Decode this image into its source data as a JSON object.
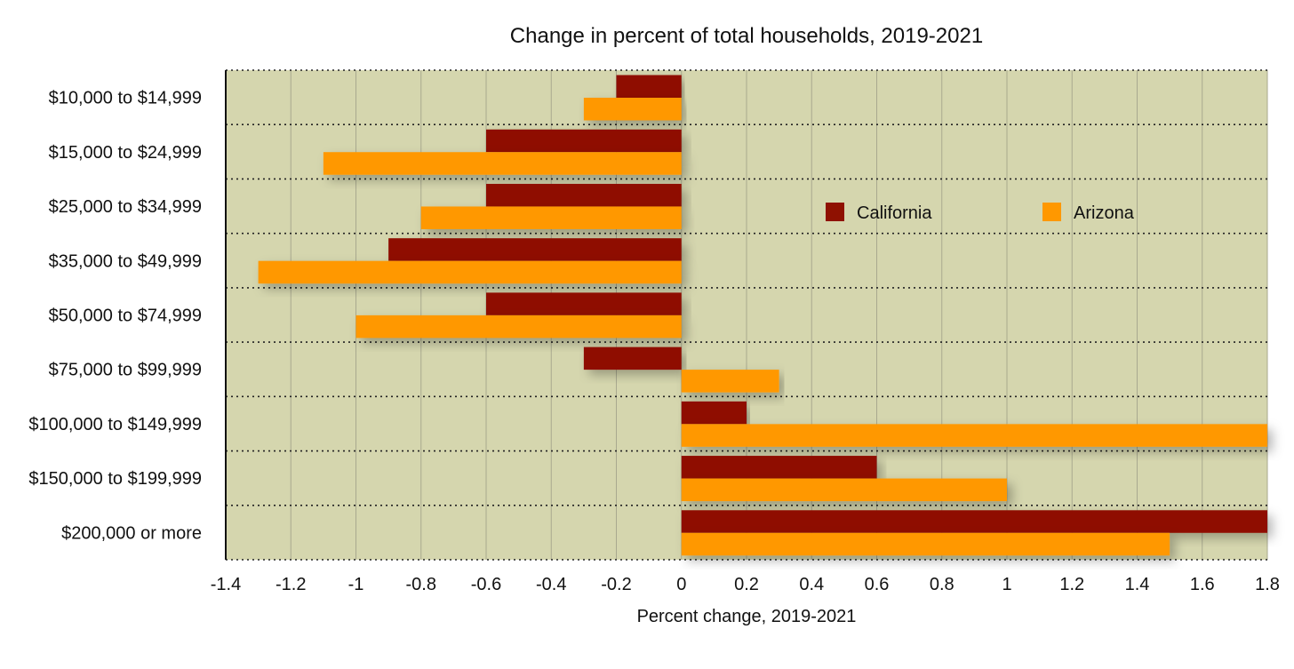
{
  "chart_data": {
    "type": "bar",
    "orientation": "horizontal",
    "title": "Change in percent of total households, 2019-2021",
    "xlabel": "Percent change, 2019-2021",
    "ylabel": "",
    "xlim": [
      -1.4,
      1.8
    ],
    "xticks": [
      "-1.4",
      "-1.2",
      "-1",
      "-0.8",
      "-0.6",
      "-0.4",
      "-0.2",
      "0",
      "0.2",
      "0.4",
      "0.6",
      "0.8",
      "1",
      "1.2",
      "1.4",
      "1.6",
      "1.8"
    ],
    "grid": true,
    "legend_position": "upper-right",
    "categories": [
      "$10,000 to $14,999",
      "$15,000 to $24,999",
      "$25,000 to $34,999",
      "$35,000 to $49,999",
      "$50,000 to $74,999",
      "$75,000 to $99,999",
      "$100,000 to $149,999",
      "$150,000 to $199,999",
      "$200,000 or more"
    ],
    "series": [
      {
        "name": "California",
        "color": "#8f1101",
        "values": [
          -0.2,
          -0.6,
          -0.6,
          -0.9,
          -0.6,
          -0.3,
          0.2,
          0.6,
          1.8
        ]
      },
      {
        "name": "Arizona",
        "color": "#ff9800",
        "values": [
          -0.3,
          -1.1,
          -0.8,
          -1.3,
          -1.0,
          0.3,
          1.8,
          1.0,
          1.5
        ]
      }
    ],
    "colors": {
      "plot_background": "#d5d6ae",
      "grid": "#a9a98f",
      "separator": "#222222"
    }
  }
}
